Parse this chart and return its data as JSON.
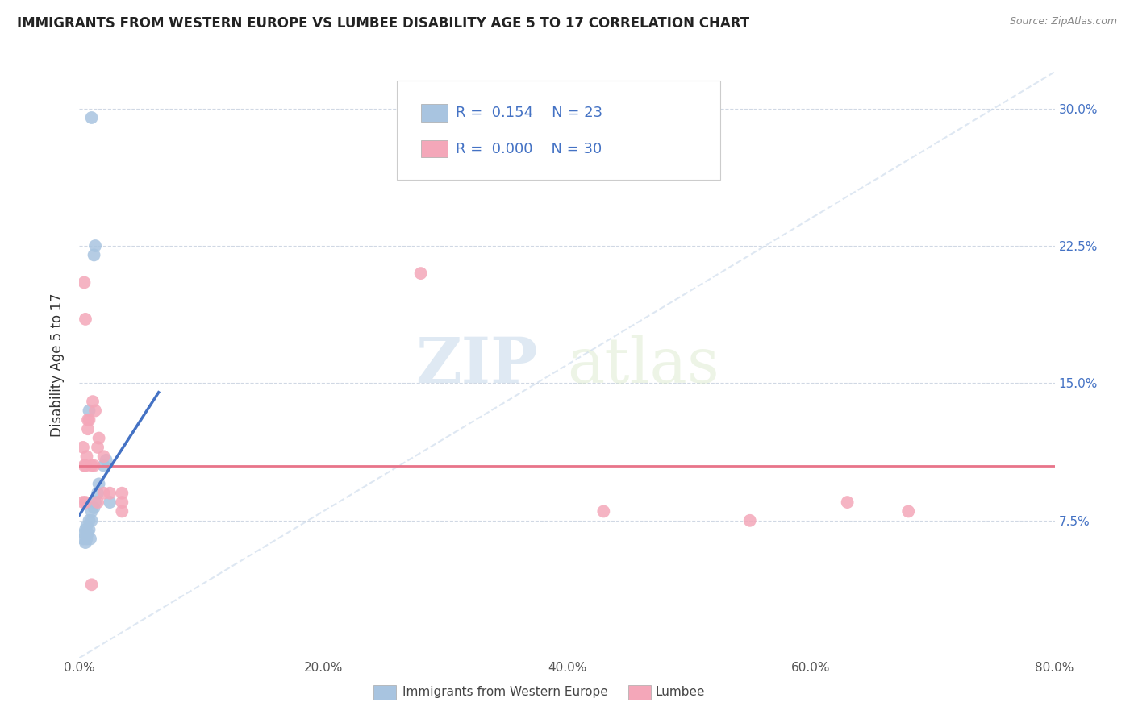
{
  "title": "IMMIGRANTS FROM WESTERN EUROPE VS LUMBEE DISABILITY AGE 5 TO 17 CORRELATION CHART",
  "source": "Source: ZipAtlas.com",
  "ylabel": "Disability Age 5 to 17",
  "legend_bottom": [
    "Immigrants from Western Europe",
    "Lumbee"
  ],
  "r_blue": 0.154,
  "n_blue": 23,
  "r_pink": 0.0,
  "n_pink": 30,
  "xlim": [
    0.0,
    80.0
  ],
  "ylim": [
    0.0,
    32.0
  ],
  "yticks": [
    7.5,
    15.0,
    22.5,
    30.0
  ],
  "xticks": [
    0,
    20,
    40,
    60,
    80
  ],
  "watermark_zip": "ZIP",
  "watermark_atlas": "atlas",
  "blue_color": "#a8c4e0",
  "pink_color": "#f4a7b9",
  "blue_line_color": "#4472c4",
  "pink_line_color": "#e8748a",
  "grid_color": "#d0d8e4",
  "blue_scatter": [
    [
      0.3,
      6.5
    ],
    [
      0.4,
      6.8
    ],
    [
      0.5,
      6.3
    ],
    [
      0.5,
      7.0
    ],
    [
      0.6,
      6.5
    ],
    [
      0.6,
      7.2
    ],
    [
      0.7,
      6.8
    ],
    [
      0.8,
      7.0
    ],
    [
      0.8,
      7.5
    ],
    [
      0.9,
      6.5
    ],
    [
      1.0,
      7.5
    ],
    [
      1.0,
      8.0
    ],
    [
      1.2,
      8.2
    ],
    [
      1.3,
      8.5
    ],
    [
      1.5,
      9.0
    ],
    [
      1.6,
      9.5
    ],
    [
      2.0,
      10.5
    ],
    [
      2.2,
      10.8
    ],
    [
      2.5,
      8.5
    ],
    [
      0.8,
      13.5
    ],
    [
      1.2,
      22.0
    ],
    [
      1.3,
      22.5
    ],
    [
      1.0,
      29.5
    ]
  ],
  "pink_scatter": [
    [
      0.3,
      11.5
    ],
    [
      0.4,
      20.5
    ],
    [
      0.5,
      18.5
    ],
    [
      0.5,
      10.5
    ],
    [
      0.6,
      11.0
    ],
    [
      0.7,
      13.0
    ],
    [
      0.7,
      12.5
    ],
    [
      0.8,
      13.0
    ],
    [
      1.0,
      10.5
    ],
    [
      1.1,
      14.0
    ],
    [
      1.2,
      10.5
    ],
    [
      1.3,
      13.5
    ],
    [
      1.5,
      11.5
    ],
    [
      1.6,
      12.0
    ],
    [
      2.0,
      11.0
    ],
    [
      2.0,
      9.0
    ],
    [
      2.5,
      9.0
    ],
    [
      3.5,
      8.5
    ],
    [
      3.5,
      9.0
    ],
    [
      0.4,
      10.5
    ],
    [
      28.0,
      21.0
    ],
    [
      43.0,
      8.0
    ],
    [
      55.0,
      7.5
    ],
    [
      3.5,
      8.0
    ],
    [
      1.5,
      8.5
    ],
    [
      0.5,
      8.5
    ],
    [
      63.0,
      8.5
    ],
    [
      68.0,
      8.0
    ],
    [
      1.0,
      4.0
    ],
    [
      0.3,
      8.5
    ]
  ],
  "blue_line": {
    "x0": 0.0,
    "y0": 7.8,
    "x1": 6.5,
    "y1": 14.5
  },
  "pink_line_y": 10.5
}
